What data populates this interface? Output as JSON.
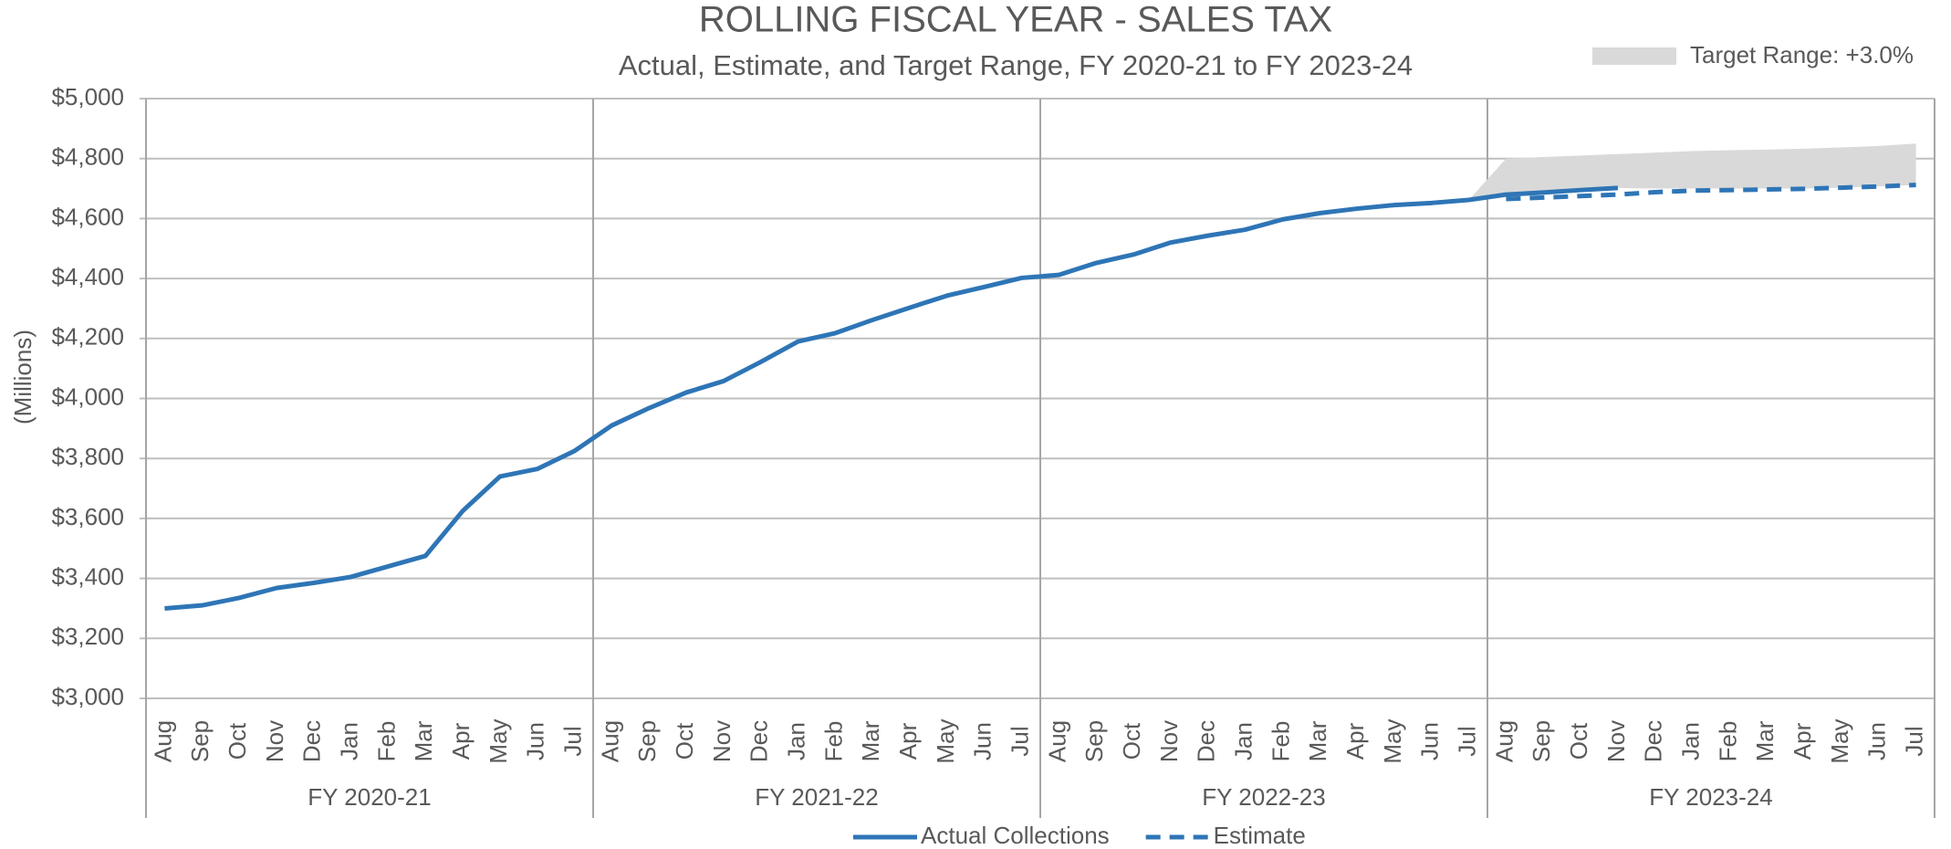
{
  "chart_data": {
    "type": "line",
    "title": "ROLLING FISCAL YEAR - SALES TAX",
    "subtitle": "Actual, Estimate, and Target Range, FY 2020-21 to FY 2023-24",
    "y_label": "(Millions)",
    "categories": [
      "Aug",
      "Sep",
      "Oct",
      "Nov",
      "Dec",
      "Jan",
      "Feb",
      "Mar",
      "Apr",
      "May",
      "Jun",
      "Jul",
      "Aug",
      "Sep",
      "Oct",
      "Nov",
      "Dec",
      "Jan",
      "Feb",
      "Mar",
      "Apr",
      "May",
      "Jun",
      "Jul",
      "Aug",
      "Sep",
      "Oct",
      "Nov",
      "Dec",
      "Jan",
      "Feb",
      "Mar",
      "Apr",
      "May",
      "Jun",
      "Jul",
      "Aug",
      "Sep",
      "Oct",
      "Nov",
      "Dec",
      "Jan",
      "Feb",
      "Mar",
      "Apr",
      "May",
      "Jun",
      "Jul"
    ],
    "groups": [
      "FY 2020-21",
      "FY 2021-22",
      "FY 2022-23",
      "FY 2023-24"
    ],
    "series": [
      {
        "name": "Actual Collections",
        "color": "#2e75b6",
        "style": "solid",
        "values": [
          3300,
          3310,
          3335,
          3368,
          3385,
          3405,
          3440,
          3475,
          3625,
          3740,
          3765,
          3825,
          3910,
          3968,
          4020,
          4058,
          4122,
          4190,
          4218,
          4262,
          4303,
          4343,
          4372,
          4402,
          4412,
          4452,
          4480,
          4520,
          4543,
          4563,
          4597,
          4618,
          4633,
          4645,
          4652,
          4662,
          4680,
          4687,
          4695,
          4702,
          null,
          null,
          null,
          null,
          null,
          null,
          null,
          null
        ]
      },
      {
        "name": "Estimate",
        "color": "#2e75b6",
        "style": "dashed",
        "values": [
          null,
          null,
          null,
          null,
          null,
          null,
          null,
          null,
          null,
          null,
          null,
          null,
          null,
          null,
          null,
          null,
          null,
          null,
          null,
          null,
          null,
          null,
          null,
          null,
          null,
          null,
          null,
          null,
          null,
          null,
          null,
          null,
          null,
          null,
          null,
          null,
          4665,
          4670,
          4675,
          4680,
          4688,
          4693,
          4695,
          4697,
          4699,
          4703,
          4707,
          4712
        ]
      },
      {
        "name": "Target Range: +3.0%",
        "color": "#d9d9d9",
        "style": "band",
        "high": [
          null,
          null,
          null,
          null,
          null,
          null,
          null,
          null,
          null,
          null,
          null,
          null,
          null,
          null,
          null,
          null,
          null,
          null,
          null,
          null,
          null,
          null,
          null,
          null,
          null,
          null,
          null,
          null,
          null,
          null,
          null,
          null,
          null,
          null,
          null,
          4662,
          4800,
          4805,
          4810,
          4815,
          4820,
          4825,
          4828,
          4830,
          4833,
          4837,
          4842,
          4850
        ],
        "low": [
          null,
          null,
          null,
          null,
          null,
          null,
          null,
          null,
          null,
          null,
          null,
          null,
          null,
          null,
          null,
          null,
          null,
          null,
          null,
          null,
          null,
          null,
          null,
          null,
          null,
          null,
          null,
          null,
          null,
          null,
          null,
          null,
          null,
          null,
          null,
          4662,
          4680,
          4687,
          4695,
          4702,
          4700,
          4700,
          4700,
          4700,
          4700,
          4703,
          4707,
          4712
        ]
      }
    ],
    "ylim": [
      3000,
      5000
    ],
    "yticks": [
      {
        "value": 3000,
        "label": "$3,000"
      },
      {
        "value": 3200,
        "label": "$3,200"
      },
      {
        "value": 3400,
        "label": "$3,400"
      },
      {
        "value": 3600,
        "label": "$3,600"
      },
      {
        "value": 3800,
        "label": "$3,800"
      },
      {
        "value": 4000,
        "label": "$4,000"
      },
      {
        "value": 4200,
        "label": "$4,200"
      },
      {
        "value": 4400,
        "label": "$4,400"
      },
      {
        "value": 4600,
        "label": "$4,600"
      },
      {
        "value": 4800,
        "label": "$4,800"
      },
      {
        "value": 5000,
        "label": "$5,000"
      }
    ],
    "grid": true
  }
}
